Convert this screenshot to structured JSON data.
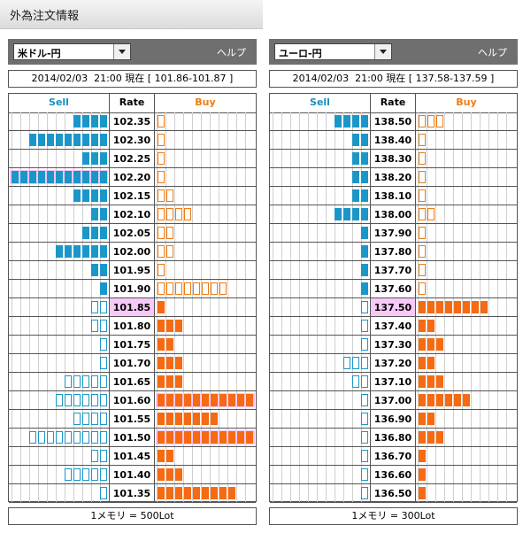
{
  "page_title": "外為注文情報",
  "panels": [
    {
      "id": "usdjpy",
      "pair": "米ドル-円",
      "help": "ヘルプ",
      "date": "2014/02/03",
      "time": "21:00",
      "now_label": "現在",
      "range": "[ 101.86-101.87 ]",
      "col_sell": "Sell",
      "col_rate": "Rate",
      "col_buy": "Buy",
      "unit_note": "1メモリ = 500Lot",
      "current_rate": "101.85",
      "rows": [
        {
          "rate": "102.35",
          "sell": 4,
          "buy": 1,
          "sell_fill": true,
          "buy_fill": false,
          "highlight": ""
        },
        {
          "rate": "102.30",
          "sell": 9,
          "buy": 1,
          "sell_fill": true,
          "buy_fill": false,
          "highlight": ""
        },
        {
          "rate": "102.25",
          "sell": 3,
          "buy": 1,
          "sell_fill": true,
          "buy_fill": false,
          "highlight": ""
        },
        {
          "rate": "102.20",
          "sell": 11,
          "buy": 1,
          "sell_fill": true,
          "buy_fill": false,
          "highlight": "sell"
        },
        {
          "rate": "102.15",
          "sell": 4,
          "buy": 2,
          "sell_fill": true,
          "buy_fill": false,
          "highlight": ""
        },
        {
          "rate": "102.10",
          "sell": 2,
          "buy": 4,
          "sell_fill": true,
          "buy_fill": false,
          "highlight": ""
        },
        {
          "rate": "102.05",
          "sell": 3,
          "buy": 2,
          "sell_fill": true,
          "buy_fill": false,
          "highlight": ""
        },
        {
          "rate": "102.00",
          "sell": 6,
          "buy": 2,
          "sell_fill": true,
          "buy_fill": false,
          "highlight": ""
        },
        {
          "rate": "101.95",
          "sell": 2,
          "buy": 1,
          "sell_fill": true,
          "buy_fill": false,
          "highlight": ""
        },
        {
          "rate": "101.90",
          "sell": 1,
          "buy": 8,
          "sell_fill": true,
          "buy_fill": false,
          "highlight": ""
        },
        {
          "rate": "101.85",
          "sell": 2,
          "buy": 1,
          "sell_fill": false,
          "buy_fill": true,
          "highlight": ""
        },
        {
          "rate": "101.80",
          "sell": 2,
          "buy": 3,
          "sell_fill": false,
          "buy_fill": true,
          "highlight": ""
        },
        {
          "rate": "101.75",
          "sell": 1,
          "buy": 2,
          "sell_fill": false,
          "buy_fill": true,
          "highlight": ""
        },
        {
          "rate": "101.70",
          "sell": 1,
          "buy": 3,
          "sell_fill": false,
          "buy_fill": true,
          "highlight": ""
        },
        {
          "rate": "101.65",
          "sell": 5,
          "buy": 3,
          "sell_fill": false,
          "buy_fill": true,
          "highlight": ""
        },
        {
          "rate": "101.60",
          "sell": 6,
          "buy": 11,
          "sell_fill": false,
          "buy_fill": true,
          "highlight": "buy"
        },
        {
          "rate": "101.55",
          "sell": 4,
          "buy": 7,
          "sell_fill": false,
          "buy_fill": true,
          "highlight": ""
        },
        {
          "rate": "101.50",
          "sell": 9,
          "buy": 11,
          "sell_fill": false,
          "buy_fill": true,
          "highlight": "buy"
        },
        {
          "rate": "101.45",
          "sell": 2,
          "buy": 2,
          "sell_fill": false,
          "buy_fill": true,
          "highlight": ""
        },
        {
          "rate": "101.40",
          "sell": 5,
          "buy": 3,
          "sell_fill": false,
          "buy_fill": true,
          "highlight": ""
        },
        {
          "rate": "101.35",
          "sell": 1,
          "buy": 9,
          "sell_fill": false,
          "buy_fill": true,
          "highlight": ""
        }
      ]
    },
    {
      "id": "eurjpy",
      "pair": "ユーロ-円",
      "help": "ヘルプ",
      "date": "2014/02/03",
      "time": "21:00",
      "now_label": "現在",
      "range": "[ 137.58-137.59 ]",
      "col_sell": "Sell",
      "col_rate": "Rate",
      "col_buy": "Buy",
      "unit_note": "1メモリ = 300Lot",
      "current_rate": "137.50",
      "rows": [
        {
          "rate": "138.50",
          "sell": 4,
          "buy": 3,
          "sell_fill": true,
          "buy_fill": false,
          "highlight": ""
        },
        {
          "rate": "138.40",
          "sell": 2,
          "buy": 1,
          "sell_fill": true,
          "buy_fill": false,
          "highlight": ""
        },
        {
          "rate": "138.30",
          "sell": 2,
          "buy": 1,
          "sell_fill": true,
          "buy_fill": false,
          "highlight": ""
        },
        {
          "rate": "138.20",
          "sell": 2,
          "buy": 1,
          "sell_fill": true,
          "buy_fill": false,
          "highlight": ""
        },
        {
          "rate": "138.10",
          "sell": 2,
          "buy": 1,
          "sell_fill": true,
          "buy_fill": false,
          "highlight": ""
        },
        {
          "rate": "138.00",
          "sell": 4,
          "buy": 2,
          "sell_fill": true,
          "buy_fill": false,
          "highlight": ""
        },
        {
          "rate": "137.90",
          "sell": 1,
          "buy": 1,
          "sell_fill": true,
          "buy_fill": false,
          "highlight": ""
        },
        {
          "rate": "137.80",
          "sell": 1,
          "buy": 1,
          "sell_fill": true,
          "buy_fill": false,
          "highlight": ""
        },
        {
          "rate": "137.70",
          "sell": 1,
          "buy": 1,
          "sell_fill": true,
          "buy_fill": false,
          "highlight": ""
        },
        {
          "rate": "137.60",
          "sell": 1,
          "buy": 1,
          "sell_fill": true,
          "buy_fill": false,
          "highlight": ""
        },
        {
          "rate": "137.50",
          "sell": 1,
          "buy": 8,
          "sell_fill": false,
          "buy_fill": true,
          "highlight": ""
        },
        {
          "rate": "137.40",
          "sell": 1,
          "buy": 2,
          "sell_fill": false,
          "buy_fill": true,
          "highlight": ""
        },
        {
          "rate": "137.30",
          "sell": 1,
          "buy": 3,
          "sell_fill": false,
          "buy_fill": true,
          "highlight": ""
        },
        {
          "rate": "137.20",
          "sell": 3,
          "buy": 2,
          "sell_fill": false,
          "buy_fill": true,
          "highlight": ""
        },
        {
          "rate": "137.10",
          "sell": 2,
          "buy": 3,
          "sell_fill": false,
          "buy_fill": true,
          "highlight": ""
        },
        {
          "rate": "137.00",
          "sell": 1,
          "buy": 6,
          "sell_fill": false,
          "buy_fill": true,
          "highlight": ""
        },
        {
          "rate": "136.90",
          "sell": 1,
          "buy": 2,
          "sell_fill": false,
          "buy_fill": true,
          "highlight": ""
        },
        {
          "rate": "136.80",
          "sell": 1,
          "buy": 3,
          "sell_fill": false,
          "buy_fill": true,
          "highlight": ""
        },
        {
          "rate": "136.70",
          "sell": 1,
          "buy": 1,
          "sell_fill": false,
          "buy_fill": true,
          "highlight": ""
        },
        {
          "rate": "136.60",
          "sell": 1,
          "buy": 1,
          "sell_fill": false,
          "buy_fill": true,
          "highlight": ""
        },
        {
          "rate": "136.50",
          "sell": 1,
          "buy": 1,
          "sell_fill": false,
          "buy_fill": true,
          "highlight": ""
        }
      ]
    }
  ],
  "colors": {
    "sell": "#1b96c8",
    "buy": "#f56a12",
    "highlight": "#f5c8f5",
    "header_bg": "#6f6f6f"
  }
}
